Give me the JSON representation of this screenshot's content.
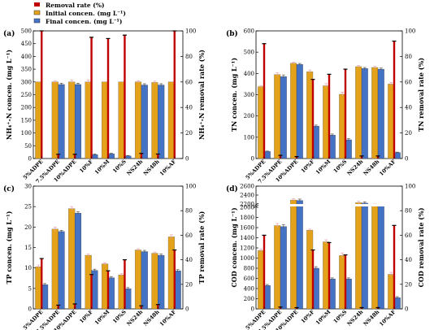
{
  "legend": {
    "items": [
      {
        "key": "removal",
        "label": "Removal rate (%)"
      },
      {
        "key": "initial",
        "label": "Initial concen. (mg L⁻¹)"
      },
      {
        "key": "final",
        "label": "Final concen. (mg L⁻¹)"
      }
    ]
  },
  "colors": {
    "initial": "#E3A21A",
    "final": "#4472C4",
    "removal": "#C00000",
    "error_initial": "#E8A0A8",
    "error_final": "#555555",
    "error_removal": "#000000"
  },
  "categories": [
    "5%ADPE",
    "7.5%ADPE",
    "10%ADPE",
    "10%F",
    "10%M",
    "10%S",
    "NS24h",
    "NS48h",
    "10%AF"
  ],
  "chart_data": [
    {
      "type": "bar",
      "panel_label": "(a)",
      "ylabel": "NH₄⁺-N concen. (mg L⁻¹)",
      "y2label": "NH₄⁺-N removal rate (%)",
      "ylim": [
        0,
        500
      ],
      "yticks": [
        "0",
        "50",
        "100",
        "150",
        "200",
        "250",
        "300",
        "350",
        "400",
        "450",
        "500"
      ],
      "y2lim": [
        0,
        100
      ],
      "y2ticks": [
        "0",
        "20",
        "40",
        "60",
        "80",
        "100"
      ],
      "categories": [
        "5%ADPE",
        "7.5%ADPE",
        "10%ADPE",
        "10%F",
        "10%M",
        "10%S",
        "NS24h",
        "NS48h",
        "10%AF"
      ],
      "series": [
        {
          "name": "Initial concen. (mg L⁻¹)",
          "values": [
            300,
            300,
            300,
            300,
            300,
            300,
            300,
            298,
            300
          ],
          "errors": [
            0,
            5,
            8,
            8,
            0,
            0,
            5,
            5,
            0
          ]
        },
        {
          "name": "Final concen. (mg L⁻¹)",
          "values": [
            0,
            290,
            290,
            15,
            18,
            10,
            288,
            288,
            0
          ],
          "errors": [
            0,
            5,
            5,
            3,
            3,
            2,
            5,
            5,
            0
          ]
        },
        {
          "name": "Removal rate (%)",
          "values": [
            100,
            3.3,
            3.3,
            95,
            94,
            96.7,
            4,
            3.5,
            100
          ],
          "errors": [
            0,
            0,
            1,
            3,
            3,
            3,
            0,
            1,
            0
          ]
        }
      ]
    },
    {
      "type": "bar",
      "panel_label": "(b)",
      "ylabel": "TN concen. (mg L⁻¹)",
      "y2label": "TN removal rate (%)",
      "ylim": [
        0,
        600
      ],
      "yticks": [
        "0",
        "100",
        "200",
        "300",
        "400",
        "500",
        "600"
      ],
      "y2lim": [
        0,
        100
      ],
      "y2ticks": [
        "0",
        "20",
        "40",
        "60",
        "80",
        "100"
      ],
      "categories": [
        "5%ADPE",
        "7.5%ADPE",
        "10%ADPE",
        "10%F",
        "10%M",
        "10%S",
        "NS24h",
        "NS48h",
        "10%AF"
      ],
      "series": [
        {
          "name": "Initial concen. (mg L⁻¹)",
          "values": [
            338,
            395,
            448,
            408,
            342,
            302,
            432,
            428,
            350
          ],
          "errors": [
            5,
            8,
            5,
            8,
            10,
            10,
            5,
            5,
            8
          ]
        },
        {
          "name": "Final concen. (mg L⁻¹)",
          "values": [
            33,
            385,
            442,
            152,
            110,
            88,
            423,
            420,
            28
          ],
          "errors": [
            2,
            8,
            5,
            5,
            5,
            5,
            5,
            5,
            2
          ]
        },
        {
          "name": "Removal rate (%)",
          "values": [
            90,
            2.5,
            1.5,
            62,
            66,
            70,
            2,
            2,
            92
          ],
          "errors": [
            0,
            0,
            0,
            0,
            0,
            0,
            0,
            0,
            0
          ]
        }
      ]
    },
    {
      "type": "bar",
      "panel_label": "(c)",
      "ylabel": "TP concen. (mg L⁻¹)",
      "y2label": "TP removal rate (%)",
      "ylim": [
        0,
        30
      ],
      "yticks": [
        "0",
        "5",
        "10",
        "15",
        "20",
        "25",
        "30"
      ],
      "y2lim": [
        0,
        100
      ],
      "y2ticks": [
        "0",
        "20",
        "40",
        "60",
        "80",
        "100"
      ],
      "categories": [
        "5%ADPE",
        "7.5%ADPE",
        "10%ADPE",
        "10%F",
        "10%M",
        "10%S",
        "NS24h",
        "NS48h",
        "10%AF"
      ],
      "series": [
        {
          "name": "Initial concen. (mg L⁻¹)",
          "values": [
            10.3,
            19.5,
            24.5,
            13.1,
            11.0,
            8.3,
            14.4,
            13.6,
            17.6
          ],
          "errors": [
            0.4,
            0.5,
            0.5,
            0.3,
            0.3,
            0.3,
            0.3,
            0.3,
            0.5
          ]
        },
        {
          "name": "Final concen. (mg L⁻¹)",
          "values": [
            5.9,
            18.9,
            23.4,
            9.4,
            7.6,
            4.9,
            14.0,
            13.1,
            9.3
          ],
          "errors": [
            0.3,
            0.3,
            0.3,
            0.3,
            0.3,
            0.3,
            0.3,
            0.3,
            0.3
          ]
        },
        {
          "name": "Removal rate (%)",
          "values": [
            41,
            3,
            4,
            28,
            31,
            40,
            2.5,
            3.5,
            48
          ],
          "errors": [
            0,
            0,
            0,
            0,
            0,
            0,
            0,
            0,
            0
          ]
        }
      ]
    },
    {
      "type": "bar",
      "panel_label": "(d)",
      "ylabel": "COD concen. (mg L⁻¹)",
      "y2label": "COD removal rate (%)",
      "y_axis_break": [
        2000,
        2200
      ],
      "yticks": [
        "0",
        "200",
        "400",
        "600",
        "800",
        "1000",
        "1200",
        "1400",
        "1600",
        "1800",
        "2000",
        "2200",
        "2400",
        "2600"
      ],
      "y2lim": [
        0,
        100
      ],
      "y2ticks": [
        "0",
        "20",
        "40",
        "60",
        "80",
        "100"
      ],
      "categories": [
        "5%ADPE",
        "7.5%ADPE",
        "10%ADPE",
        "10%F",
        "10%M",
        "10%S",
        "NS24h",
        "NS48h",
        "10%AF"
      ],
      "series": [
        {
          "name": "Initial concen. (mg L⁻¹)",
          "values": [
            1150,
            1640,
            2290,
            1550,
            1320,
            1050,
            2230,
            2170,
            680
          ],
          "errors": [
            30,
            40,
            30,
            20,
            40,
            50,
            30,
            30,
            40
          ]
        },
        {
          "name": "Final concen. (mg L⁻¹)",
          "values": [
            460,
            1620,
            2280,
            800,
            590,
            590,
            2220,
            2150,
            220
          ],
          "errors": [
            20,
            40,
            30,
            30,
            20,
            20,
            30,
            30,
            20
          ]
        },
        {
          "name": "Removal rate (%)",
          "values": [
            60,
            1.5,
            1,
            48,
            54,
            44,
            1,
            1,
            68
          ],
          "errors": [
            0,
            0,
            0,
            0,
            0,
            0,
            0,
            0,
            0
          ]
        }
      ]
    }
  ]
}
